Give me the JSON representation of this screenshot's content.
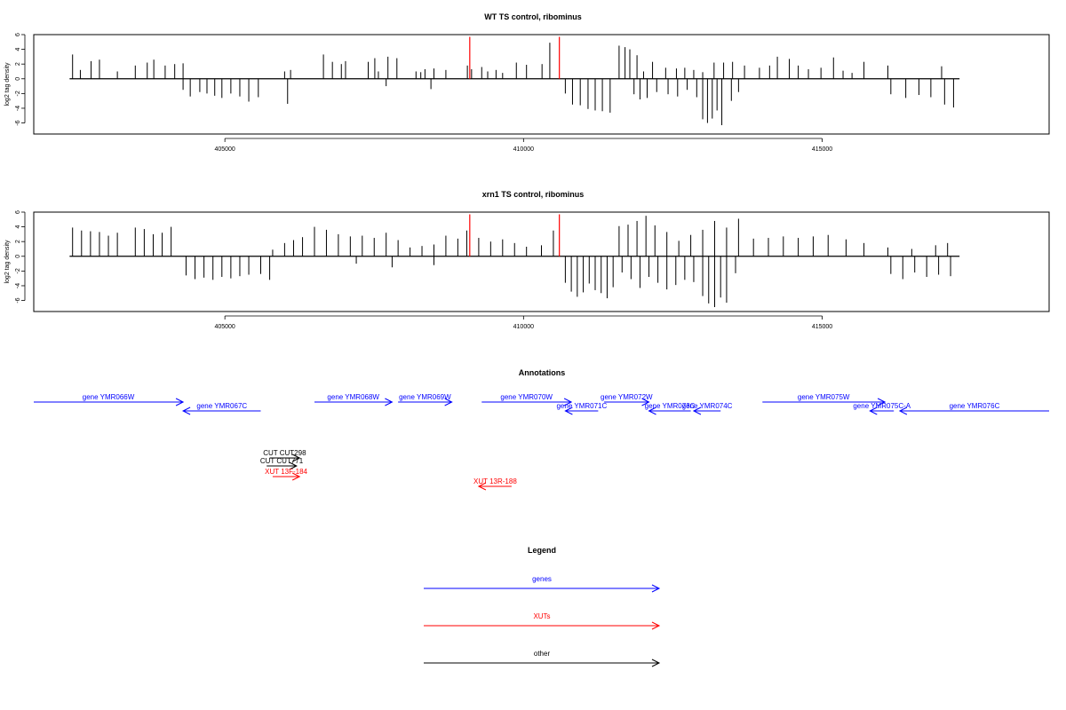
{
  "colors": {
    "gene": "#0000ff",
    "xut": "#ff0000",
    "other": "#000000",
    "signal": "#000000",
    "marker": "#ff0000"
  },
  "chart_data": [
    {
      "type": "bar",
      "panel": "wt",
      "title": "WT TS control, ribominus",
      "ylabel": "log2 tag density",
      "xlim": [
        401800,
        418800
      ],
      "ylim": [
        -7.5,
        6
      ],
      "xticks": [
        405000,
        410000,
        415000
      ],
      "xtick_labels": [
        "405000",
        "410000",
        "415000"
      ],
      "yticks": [
        6,
        4,
        2,
        0,
        -2,
        -4,
        -6
      ],
      "ytick_labels": [
        "6",
        "4",
        "2",
        "0",
        "-2",
        "-4",
        "-6"
      ],
      "baseline": [
        402400,
        417300
      ],
      "markers": [
        {
          "x": 409100,
          "y": 5.7
        },
        {
          "x": 410600,
          "y": 5.7
        }
      ],
      "series": [
        {
          "x": [
            402450,
            402580,
            402760,
            402900,
            403200,
            403500,
            403700,
            403810,
            404000,
            404160,
            404300,
            406000,
            406100,
            406650,
            406800,
            406950,
            407020,
            407400,
            407510,
            407570,
            407730,
            407880,
            408200,
            408280,
            408350,
            408500,
            408700,
            409060,
            409130,
            409300,
            409400,
            409540,
            409650,
            409880,
            410050,
            410310,
            410440,
            411600,
            411700,
            411780,
            411900,
            412010,
            412160,
            412380,
            412560,
            412700,
            412850,
            413000,
            413190,
            413350,
            413500,
            413700,
            413950,
            414120,
            414250,
            414450,
            414600,
            414770,
            414980,
            415190,
            415350,
            415500,
            415700,
            416100,
            417000
          ],
          "values": [
            3.3,
            1.2,
            2.4,
            2.6,
            1.0,
            1.8,
            2.2,
            2.6,
            1.8,
            2.0,
            2.1,
            1.0,
            1.2,
            3.3,
            2.3,
            2.0,
            2.4,
            2.3,
            2.8,
            1.0,
            3.0,
            2.8,
            1.0,
            0.9,
            1.3,
            1.4,
            1.2,
            1.8,
            1.3,
            1.6,
            1.0,
            1.2,
            0.8,
            2.2,
            1.9,
            2.0,
            4.9,
            4.5,
            4.3,
            4.0,
            3.2,
            1.0,
            2.3,
            1.5,
            1.4,
            1.5,
            1.2,
            0.9,
            2.2,
            2.2,
            2.3,
            1.8,
            1.5,
            1.8,
            3.0,
            2.7,
            1.8,
            1.3,
            1.5,
            2.9,
            1.1,
            0.8,
            2.3,
            1.8,
            1.7
          ]
        },
        {
          "x": [
            404300,
            404420,
            404580,
            404700,
            404830,
            404950,
            405100,
            405250,
            405400,
            405560,
            406050,
            407700,
            408450,
            410700,
            410820,
            410950,
            411080,
            411200,
            411320,
            411450,
            411850,
            411950,
            412070,
            412230,
            412420,
            412580,
            412740,
            412900,
            413000,
            413080,
            413160,
            413240,
            413320,
            413480,
            413600,
            416150,
            416400,
            416620,
            416820,
            417050,
            417200
          ],
          "values": [
            -1.5,
            -2.4,
            -1.8,
            -2.0,
            -2.3,
            -2.6,
            -2.0,
            -2.4,
            -3.1,
            -2.5,
            -3.4,
            -1.0,
            -1.4,
            -2.0,
            -3.5,
            -3.6,
            -4.1,
            -4.3,
            -4.4,
            -4.6,
            -2.1,
            -2.8,
            -2.6,
            -1.8,
            -2.1,
            -2.4,
            -1.5,
            -2.5,
            -5.5,
            -6.0,
            -5.4,
            -4.3,
            -6.3,
            -3.0,
            -1.8,
            -2.1,
            -2.6,
            -2.2,
            -2.5,
            -3.5,
            -3.9
          ]
        }
      ]
    },
    {
      "type": "bar",
      "panel": "xrn1",
      "title": "xrn1 TS control, ribominus",
      "ylabel": "log2 tag density",
      "xlim": [
        401800,
        418800
      ],
      "ylim": [
        -7.5,
        6
      ],
      "xticks": [
        405000,
        410000,
        415000
      ],
      "xtick_labels": [
        "405000",
        "410000",
        "415000"
      ],
      "yticks": [
        6,
        4,
        2,
        0,
        -2,
        -4,
        -6
      ],
      "ytick_labels": [
        "6",
        "4",
        "2",
        "0",
        "-2",
        "-4",
        "-6"
      ],
      "baseline": [
        402400,
        417300
      ],
      "markers": [
        {
          "x": 409100,
          "y": 5.7
        },
        {
          "x": 410600,
          "y": 5.7
        }
      ],
      "series": [
        {
          "x": [
            402450,
            402600,
            402750,
            402900,
            403050,
            403200,
            403500,
            403650,
            403800,
            403950,
            404100,
            405800,
            406000,
            406150,
            406300,
            406500,
            406700,
            406900,
            407100,
            407300,
            407500,
            407700,
            407900,
            408100,
            408300,
            408500,
            408700,
            408900,
            409050,
            409250,
            409450,
            409650,
            409850,
            410050,
            410300,
            410500,
            411600,
            411750,
            411900,
            412050,
            412200,
            412400,
            412600,
            412800,
            413000,
            413200,
            413400,
            413600,
            413850,
            414100,
            414350,
            414600,
            414850,
            415100,
            415400,
            415700,
            416100,
            416500,
            416900,
            417100
          ],
          "values": [
            3.9,
            3.5,
            3.4,
            3.3,
            2.8,
            3.2,
            3.9,
            3.7,
            3.0,
            3.2,
            4.0,
            0.9,
            1.8,
            2.2,
            2.6,
            4.0,
            3.6,
            3.0,
            2.7,
            2.8,
            2.5,
            3.2,
            2.2,
            1.2,
            1.4,
            1.6,
            2.8,
            2.4,
            3.5,
            2.5,
            2.0,
            2.3,
            1.8,
            1.3,
            1.5,
            3.5,
            4.1,
            4.3,
            4.8,
            5.5,
            4.2,
            3.3,
            2.1,
            2.9,
            3.6,
            4.8,
            3.9,
            5.1,
            2.4,
            2.5,
            2.7,
            2.5,
            2.7,
            2.9,
            2.3,
            1.8,
            1.2,
            1.0,
            1.5,
            1.8
          ]
        },
        {
          "x": [
            404350,
            404500,
            404650,
            404800,
            404950,
            405100,
            405250,
            405400,
            405600,
            405750,
            407200,
            407800,
            408500,
            410700,
            410800,
            410900,
            411000,
            411100,
            411200,
            411300,
            411400,
            411500,
            411650,
            411800,
            411950,
            412100,
            412250,
            412400,
            412550,
            412700,
            412850,
            413000,
            413100,
            413200,
            413300,
            413400,
            413550,
            416150,
            416350,
            416550,
            416750,
            416950,
            417150
          ],
          "values": [
            -2.6,
            -3.1,
            -2.9,
            -3.2,
            -2.8,
            -3.0,
            -2.7,
            -2.5,
            -2.4,
            -3.2,
            -1.0,
            -1.5,
            -1.2,
            -3.6,
            -4.8,
            -5.5,
            -4.9,
            -3.7,
            -4.6,
            -5.0,
            -5.7,
            -4.2,
            -2.2,
            -3.1,
            -4.3,
            -2.8,
            -3.6,
            -4.5,
            -3.9,
            -3.2,
            -3.5,
            -5.4,
            -6.4,
            -6.9,
            -5.6,
            -6.3,
            -2.3,
            -2.4,
            -3.1,
            -2.2,
            -2.8,
            -2.5,
            -2.7
          ]
        }
      ]
    }
  ],
  "annotations": {
    "title": "Annotations",
    "xlim": [
      401800,
      418800
    ],
    "features": [
      {
        "label": "gene YMR066W",
        "start": 401800,
        "end": 404300,
        "strand": "+",
        "kind": "gene",
        "row": 1
      },
      {
        "label": "gene YMR067C",
        "start": 404300,
        "end": 405600,
        "strand": "-",
        "kind": "gene",
        "row": 2
      },
      {
        "label": "gene YMR068W",
        "start": 406500,
        "end": 407800,
        "strand": "+",
        "kind": "gene",
        "row": 1
      },
      {
        "label": "gene YMR069W",
        "start": 407900,
        "end": 408800,
        "strand": "+",
        "kind": "gene",
        "row": 1
      },
      {
        "label": "gene YMR070W",
        "start": 409300,
        "end": 410800,
        "strand": "+",
        "kind": "gene",
        "row": 1
      },
      {
        "label": "gene YMR071C",
        "start": 410700,
        "end": 411250,
        "strand": "-",
        "kind": "gene",
        "row": 2
      },
      {
        "label": "gene YMR072W",
        "start": 411350,
        "end": 412100,
        "strand": "+",
        "kind": "gene",
        "row": 1
      },
      {
        "label": "gene YMR073C",
        "start": 412100,
        "end": 412800,
        "strand": "-",
        "kind": "gene",
        "row": 2
      },
      {
        "label": "gene YMR074C",
        "start": 412850,
        "end": 413300,
        "strand": "-",
        "kind": "gene",
        "row": 2
      },
      {
        "label": "gene YMR075W",
        "start": 414000,
        "end": 416050,
        "strand": "+",
        "kind": "gene",
        "row": 1
      },
      {
        "label": "gene YMR075C-A",
        "start": 415800,
        "end": 416200,
        "strand": "-",
        "kind": "gene",
        "row": 2
      },
      {
        "label": "gene YMR076C",
        "start": 416300,
        "end": 418800,
        "strand": "-",
        "kind": "gene",
        "row": 2
      },
      {
        "label": "CUT CUT298",
        "start": 405750,
        "end": 406250,
        "strand": "+",
        "kind": "other",
        "row": 4
      },
      {
        "label": "CUT CUT771",
        "start": 405700,
        "end": 406200,
        "strand": "+",
        "kind": "other",
        "row": 5
      },
      {
        "label": "XUT 13F-184",
        "start": 405800,
        "end": 406250,
        "strand": "+",
        "kind": "xut",
        "row": 6
      },
      {
        "label": "XUT 13R-188",
        "start": 409250,
        "end": 409800,
        "strand": "-",
        "kind": "xut",
        "row": 7
      }
    ]
  },
  "legend": {
    "title": "Legend",
    "items": [
      {
        "label": "genes",
        "kind": "gene"
      },
      {
        "label": "XUTs",
        "kind": "xut"
      },
      {
        "label": "other",
        "kind": "other"
      }
    ]
  }
}
